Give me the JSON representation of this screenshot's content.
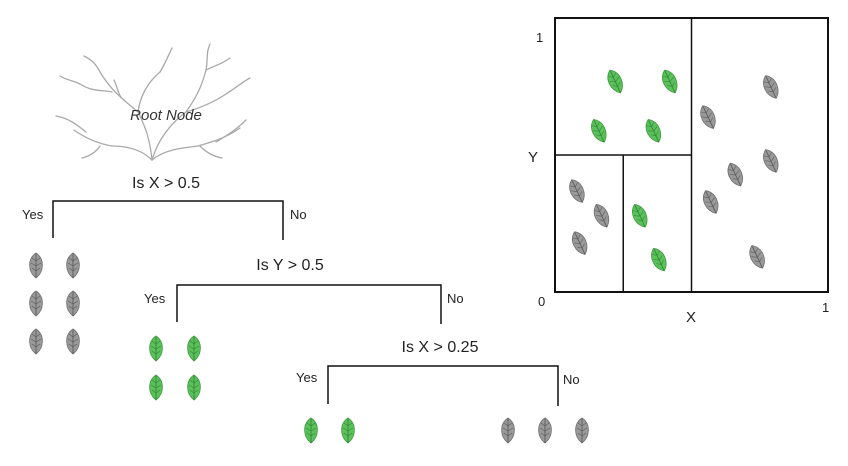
{
  "tree": {
    "root_label": "Root Node",
    "splits": [
      {
        "question": "Is X > 0.5",
        "yes_label": "Yes",
        "no_label": "No"
      },
      {
        "question": "Is Y > 0.5",
        "yes_label": "Yes",
        "no_label": "No"
      },
      {
        "question": "Is X > 0.25",
        "yes_label": "Yes",
        "no_label": "No"
      }
    ],
    "leaf_nodes": [
      {
        "branch": "Is X > 0.5 / Yes",
        "color": "gray",
        "count": 6
      },
      {
        "branch": "Is Y > 0.5 / Yes",
        "color": "green",
        "count": 4
      },
      {
        "branch": "Is X > 0.25 / Yes",
        "color": "green",
        "count": 2
      },
      {
        "branch": "Is X > 0.25 / No",
        "color": "gray",
        "count": 3
      }
    ]
  },
  "partition_plot": {
    "x_label": "X",
    "y_label": "Y",
    "tick_origin": "0",
    "tick_x_max": "1",
    "tick_y_max": "1",
    "x_range": [
      0,
      1
    ],
    "y_range": [
      0,
      1
    ],
    "split_lines": [
      {
        "axis": "x",
        "value": 0.5,
        "from": 0,
        "to": 1
      },
      {
        "axis": "y",
        "value": 0.5,
        "from": 0,
        "to": 0.5
      },
      {
        "axis": "x",
        "value": 0.25,
        "from": 0,
        "to": 0.5
      }
    ],
    "points": [
      {
        "x": 0.22,
        "y": 0.77,
        "color": "green"
      },
      {
        "x": 0.42,
        "y": 0.77,
        "color": "green"
      },
      {
        "x": 0.16,
        "y": 0.59,
        "color": "green"
      },
      {
        "x": 0.36,
        "y": 0.59,
        "color": "green"
      },
      {
        "x": 0.08,
        "y": 0.37,
        "color": "gray"
      },
      {
        "x": 0.17,
        "y": 0.28,
        "color": "gray"
      },
      {
        "x": 0.09,
        "y": 0.18,
        "color": "gray"
      },
      {
        "x": 0.31,
        "y": 0.28,
        "color": "green"
      },
      {
        "x": 0.38,
        "y": 0.12,
        "color": "green"
      },
      {
        "x": 0.79,
        "y": 0.75,
        "color": "gray"
      },
      {
        "x": 0.56,
        "y": 0.64,
        "color": "gray"
      },
      {
        "x": 0.79,
        "y": 0.48,
        "color": "gray"
      },
      {
        "x": 0.66,
        "y": 0.43,
        "color": "gray"
      },
      {
        "x": 0.57,
        "y": 0.33,
        "color": "gray"
      },
      {
        "x": 0.74,
        "y": 0.13,
        "color": "gray"
      }
    ]
  },
  "colors": {
    "green_leaf": "#5cc05c",
    "green_leaf_vein": "#2f8a32",
    "gray_leaf": "#9a9a9a",
    "gray_leaf_vein": "#5c5c5c",
    "line": "#111111",
    "branch": "#a9a9a9"
  }
}
